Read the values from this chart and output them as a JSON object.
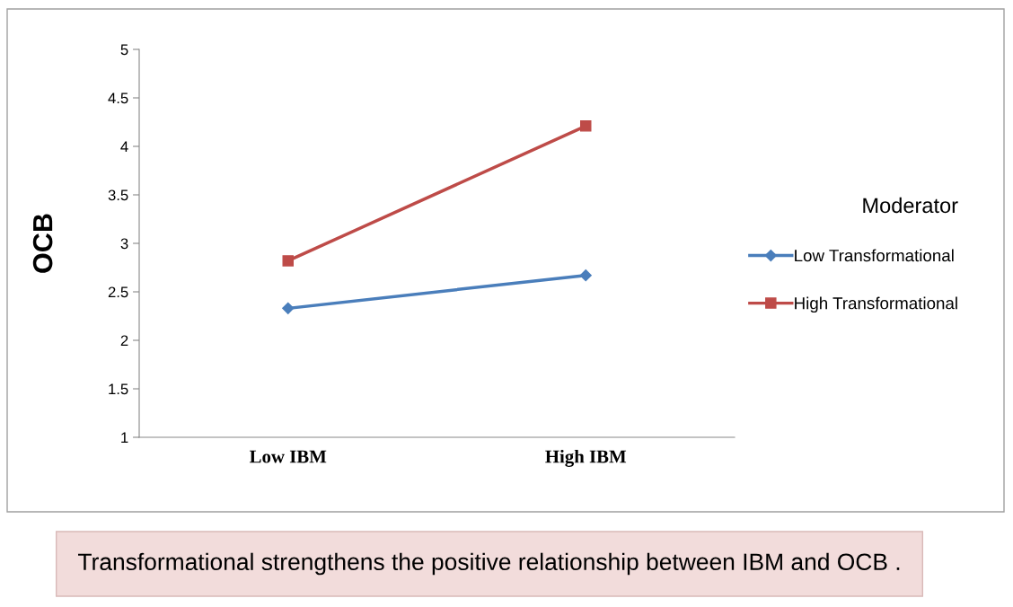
{
  "chart_data": {
    "type": "line",
    "ylabel": "OCB",
    "categories": [
      "Low IBM",
      "High IBM"
    ],
    "series": [
      {
        "name": "Low Transformational",
        "color": "#4a7ebb",
        "values": [
          2.33,
          2.67
        ],
        "marker": "diamond"
      },
      {
        "name": "High Transformational",
        "color": "#be4b48",
        "values": [
          2.82,
          4.21
        ],
        "marker": "square"
      }
    ],
    "ylim": [
      1,
      5
    ],
    "yticks": [
      1,
      1.5,
      2,
      2.5,
      3,
      3.5,
      4,
      4.5,
      5
    ],
    "grid": false,
    "legend": "right",
    "legend_title": "Moderator",
    "annotations": [
      "Transformational strengthens the positive relationship between IBM and OCB ."
    ]
  }
}
